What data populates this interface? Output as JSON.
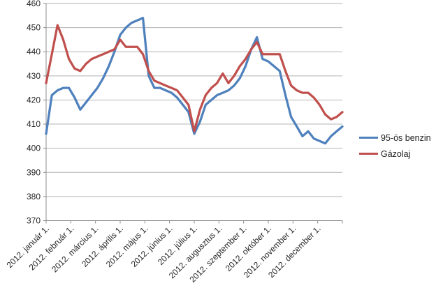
{
  "chart": {
    "background": "#ffffff",
    "gridline_color": "#b3b3b3",
    "axis_color": "#8c8c8c",
    "tick_label_color": "#262626",
    "legend": {
      "position": "right",
      "items": [
        {
          "label": "95-ös benzin",
          "color": "#4F81BD"
        },
        {
          "label": "Gázolaj",
          "color": "#C0504D"
        }
      ]
    }
  },
  "chart_data": {
    "type": "line",
    "title": "",
    "xlabel": "",
    "ylabel": "",
    "grid": true,
    "legend_position": "right",
    "x_axis": {
      "kind": "date",
      "visible_tick_labels": [
        "2012. január 1.",
        "2012. február 1.",
        "2012. március 1.",
        "2012. április 1.",
        "2012. május 1.",
        "2012. június 1.",
        "2012. július 1.",
        "2012. augusztus 1.",
        "2012. szeptember 1.",
        "2012. október 1.",
        "2012. november 1.",
        "2012. december 1."
      ],
      "label_rotation_deg": 45,
      "data_interval": "weekly"
    },
    "y_axis": {
      "min": 370,
      "max": 460,
      "step": 10
    },
    "series": [
      {
        "name": "95-ös benzin",
        "color": "#4F81BD",
        "values": [
          406,
          422,
          424,
          425,
          425,
          421,
          416,
          419,
          422,
          425,
          429,
          434,
          440,
          447,
          450,
          452,
          453,
          454,
          430,
          425,
          425,
          424,
          423,
          421,
          418,
          415,
          406,
          411,
          418,
          420,
          422,
          423,
          424,
          426,
          429,
          434,
          441,
          446,
          437,
          436,
          434,
          432,
          422,
          413,
          409,
          405,
          407,
          404,
          403,
          402,
          405,
          407,
          409
        ]
      },
      {
        "name": "Gázolaj",
        "color": "#C0504D",
        "values": [
          427,
          439,
          451,
          445,
          437,
          433,
          432,
          435,
          437,
          438,
          439,
          440,
          441,
          445,
          442,
          442,
          442,
          439,
          432,
          428,
          427,
          426,
          425,
          424,
          421,
          418,
          407,
          416,
          422,
          425,
          427,
          431,
          427,
          430,
          434,
          437,
          441,
          444,
          439,
          439,
          439,
          439,
          432,
          426,
          424,
          423,
          423,
          421,
          418,
          414,
          412,
          413,
          415
        ]
      }
    ]
  }
}
